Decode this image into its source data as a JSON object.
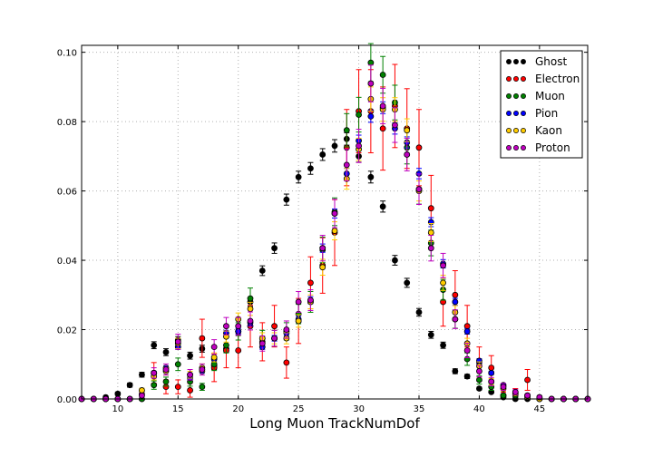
{
  "chart_data": {
    "type": "scatter",
    "title": "",
    "xlabel": "Long Muon TrackNumDof",
    "ylabel": "",
    "xlim": [
      7,
      49
    ],
    "ylim": [
      0.0,
      0.102
    ],
    "x_ticks": [
      10,
      15,
      20,
      25,
      30,
      35,
      40,
      45
    ],
    "y_ticks": [
      0.0,
      0.02,
      0.04,
      0.06,
      0.08,
      0.1
    ],
    "y_tick_labels": [
      "0.00",
      "0.02",
      "0.04",
      "0.06",
      "0.08",
      "0.10"
    ],
    "grid": true,
    "legend_position": "top-right",
    "x": [
      7,
      8,
      9,
      10,
      11,
      12,
      13,
      14,
      15,
      16,
      17,
      18,
      19,
      20,
      21,
      22,
      23,
      24,
      25,
      26,
      27,
      28,
      29,
      30,
      31,
      32,
      33,
      34,
      35,
      36,
      37,
      38,
      39,
      40,
      41,
      42,
      43,
      44,
      45,
      46,
      47,
      48,
      49
    ],
    "series": [
      {
        "name": "Ghost",
        "color": "#000000",
        "y": [
          0,
          0,
          0.0005,
          0.0015,
          0.004,
          0.007,
          0.0155,
          0.0135,
          0.017,
          0.0125,
          0.0145,
          0.0095,
          0.0145,
          0.0195,
          0.028,
          0.037,
          0.0435,
          0.0575,
          0.064,
          0.0665,
          0.0705,
          0.073,
          0.075,
          0.07,
          0.064,
          0.0555,
          0.04,
          0.0335,
          0.025,
          0.0185,
          0.0155,
          0.008,
          0.0065,
          0.003,
          0.002,
          0.0005,
          0,
          0,
          0,
          0,
          0,
          0,
          0
        ],
        "err": [
          0,
          0,
          0.0003,
          0.0005,
          0.0006,
          0.0007,
          0.001,
          0.001,
          0.001,
          0.001,
          0.001,
          0.001,
          0.001,
          0.0012,
          0.0013,
          0.0014,
          0.0015,
          0.0016,
          0.0017,
          0.0017,
          0.0017,
          0.0018,
          0.0018,
          0.0017,
          0.0017,
          0.0016,
          0.0014,
          0.0013,
          0.0011,
          0.001,
          0.0009,
          0.0007,
          0.0006,
          0.0004,
          0.0003,
          0.0002,
          0,
          0,
          0,
          0,
          0,
          0,
          0
        ]
      },
      {
        "name": "Electron",
        "color": "#ff0000",
        "y": [
          0,
          0,
          0,
          0,
          0,
          0,
          0.0075,
          0.0035,
          0.0035,
          0.0025,
          0.0175,
          0.009,
          0.014,
          0.014,
          0.021,
          0.0165,
          0.021,
          0.0105,
          0.0225,
          0.0335,
          0.0385,
          0.048,
          0.0725,
          0.083,
          0.083,
          0.078,
          0.0845,
          0.078,
          0.0725,
          0.055,
          0.028,
          0.03,
          0.021,
          0.0105,
          0.009,
          0.001,
          0.0015,
          0.0055,
          0,
          0,
          0,
          0,
          0
        ],
        "err": [
          0,
          0,
          0,
          0,
          0,
          0,
          0.003,
          0.002,
          0.002,
          0.002,
          0.0055,
          0.004,
          0.005,
          0.005,
          0.006,
          0.0055,
          0.006,
          0.0045,
          0.0065,
          0.0075,
          0.008,
          0.0095,
          0.011,
          0.012,
          0.012,
          0.012,
          0.012,
          0.0115,
          0.011,
          0.0095,
          0.007,
          0.007,
          0.006,
          0.0045,
          0.0035,
          0.001,
          0.0015,
          0.003,
          0,
          0,
          0,
          0,
          0
        ]
      },
      {
        "name": "Muon",
        "color": "#008000",
        "y": [
          0,
          0,
          0,
          0,
          0,
          0,
          0.004,
          0.005,
          0.01,
          0.005,
          0.0035,
          0.01,
          0.0155,
          0.0195,
          0.029,
          0.0175,
          0.0175,
          0.0195,
          0.0245,
          0.028,
          0.043,
          0.054,
          0.0775,
          0.082,
          0.097,
          0.0935,
          0.0855,
          0.0725,
          0.0605,
          0.045,
          0.0315,
          0.023,
          0.0115,
          0.0055,
          0.0035,
          0.001,
          0.001,
          0.0005,
          0,
          0,
          0,
          0,
          0
        ],
        "err": [
          0,
          0,
          0,
          0,
          0,
          0,
          0.0012,
          0.0013,
          0.0018,
          0.0013,
          0.001,
          0.0018,
          0.0022,
          0.0025,
          0.003,
          0.0023,
          0.0023,
          0.0025,
          0.0028,
          0.003,
          0.0037,
          0.004,
          0.0048,
          0.005,
          0.0055,
          0.0053,
          0.005,
          0.0047,
          0.0043,
          0.0037,
          0.003,
          0.0026,
          0.0018,
          0.0012,
          0.001,
          0.0005,
          0.0005,
          0.0003,
          0,
          0,
          0,
          0,
          0
        ]
      },
      {
        "name": "Pion",
        "color": "#0000ff",
        "y": [
          0,
          0,
          0,
          0,
          0,
          0.0015,
          0.0075,
          0.009,
          0.015,
          0.006,
          0.008,
          0.0115,
          0.019,
          0.0195,
          0.022,
          0.015,
          0.0175,
          0.019,
          0.023,
          0.0285,
          0.0435,
          0.0535,
          0.065,
          0.0745,
          0.0815,
          0.084,
          0.078,
          0.074,
          0.065,
          0.051,
          0.039,
          0.028,
          0.0195,
          0.011,
          0.0075,
          0.004,
          0.002,
          0.001,
          0.0005,
          0,
          0,
          0,
          0
        ],
        "err": [
          0,
          0,
          0,
          0,
          0,
          0.0003,
          0.0005,
          0.0005,
          0.0007,
          0.0004,
          0.0005,
          0.0006,
          0.0008,
          0.0008,
          0.0009,
          0.0007,
          0.0008,
          0.0008,
          0.0009,
          0.001,
          0.0012,
          0.0013,
          0.0015,
          0.0016,
          0.0017,
          0.0017,
          0.0016,
          0.0016,
          0.0015,
          0.0013,
          0.0012,
          0.001,
          0.0008,
          0.0006,
          0.0005,
          0.0004,
          0.0003,
          0.0002,
          0.0001,
          0,
          0,
          0,
          0
        ]
      },
      {
        "name": "Kaon",
        "color": "#ffcc00",
        "y": [
          0,
          0,
          0,
          0,
          0,
          0.0025,
          0.0065,
          0.008,
          0.016,
          0.007,
          0.009,
          0.012,
          0.018,
          0.023,
          0.026,
          0.0175,
          0.0175,
          0.0175,
          0.0225,
          0.028,
          0.038,
          0.0485,
          0.0635,
          0.072,
          0.0865,
          0.0835,
          0.0835,
          0.0775,
          0.06,
          0.048,
          0.0335,
          0.025,
          0.016,
          0.0095,
          0.005,
          0.003,
          0.0015,
          0.0005,
          0,
          0,
          0,
          0,
          0
        ],
        "err": [
          0,
          0,
          0,
          0,
          0,
          0.0006,
          0.001,
          0.0011,
          0.0015,
          0.001,
          0.0011,
          0.0013,
          0.0016,
          0.0018,
          0.0019,
          0.0016,
          0.0016,
          0.0016,
          0.0018,
          0.002,
          0.0023,
          0.0026,
          0.003,
          0.0032,
          0.0035,
          0.0034,
          0.0034,
          0.0033,
          0.0029,
          0.0026,
          0.0022,
          0.0019,
          0.0015,
          0.0012,
          0.0009,
          0.0007,
          0.0005,
          0.0003,
          0,
          0,
          0,
          0,
          0
        ]
      },
      {
        "name": "Proton",
        "color": "#bf00bf",
        "y": [
          0,
          0,
          0,
          0,
          0,
          0.001,
          0.0075,
          0.0085,
          0.0165,
          0.007,
          0.0085,
          0.015,
          0.021,
          0.021,
          0.0225,
          0.016,
          0.0175,
          0.02,
          0.028,
          0.0285,
          0.0435,
          0.0535,
          0.0675,
          0.073,
          0.091,
          0.0845,
          0.079,
          0.0705,
          0.0605,
          0.0435,
          0.0385,
          0.023,
          0.014,
          0.008,
          0.005,
          0.0035,
          0.002,
          0.001,
          0.0005,
          0,
          0,
          0,
          0
        ],
        "err": [
          0,
          0,
          0,
          0,
          0,
          0.0006,
          0.0015,
          0.0016,
          0.0022,
          0.0015,
          0.0016,
          0.0021,
          0.0025,
          0.0025,
          0.0026,
          0.0022,
          0.0023,
          0.0025,
          0.003,
          0.003,
          0.0037,
          0.0041,
          0.0046,
          0.0048,
          0.0053,
          0.0051,
          0.005,
          0.0047,
          0.0044,
          0.0037,
          0.0035,
          0.0027,
          0.0021,
          0.0016,
          0.0012,
          0.001,
          0.0008,
          0.0005,
          0.0004,
          0,
          0,
          0,
          0
        ]
      }
    ]
  }
}
